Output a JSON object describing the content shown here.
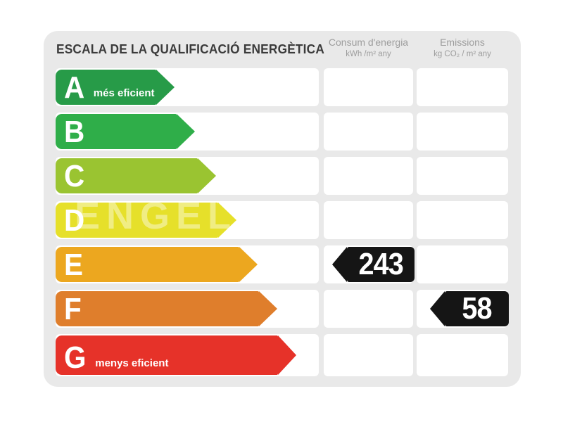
{
  "header": {
    "title": "ESCALA DE LA QUALIFICACIÓ ENERGÈTICA",
    "columns": [
      {
        "name": "Consum d'energia",
        "unit": "kWh /m² any"
      },
      {
        "name": "Emissions",
        "unit": "kg CO₂ / m² any"
      }
    ]
  },
  "scale": {
    "rows": [
      {
        "letter": "A",
        "label": "més eficient",
        "color": "#279b48"
      },
      {
        "letter": "B",
        "label": "",
        "color": "#2fae49"
      },
      {
        "letter": "C",
        "label": "",
        "color": "#9ac431"
      },
      {
        "letter": "D",
        "label": "",
        "color": "#e6e02a"
      },
      {
        "letter": "E",
        "label": "",
        "color": "#eca71f"
      },
      {
        "letter": "F",
        "label": "",
        "color": "#df7e2c"
      },
      {
        "letter": "G",
        "label": "menys eficient",
        "color": "#e63229"
      }
    ]
  },
  "markers": {
    "consum": {
      "value": "243",
      "row": "E"
    },
    "emissions": {
      "value": "58",
      "row": "F"
    }
  },
  "watermark": "ENGEL",
  "colors": {
    "card_bg": "#e9e9e9",
    "cell_bg": "#ffffff",
    "title": "#3b3b3b",
    "muted": "#9d9d9d",
    "marker": "#151515"
  },
  "chart_data": {
    "type": "bar",
    "title": "ESCALA DE LA QUALIFICACIÓ ENERGÈTICA",
    "categories": [
      "A",
      "B",
      "C",
      "D",
      "E",
      "F",
      "G"
    ],
    "category_annotations": {
      "A": "més eficient",
      "G": "menys eficient"
    },
    "bar_colors": [
      "#279b48",
      "#2fae49",
      "#9ac431",
      "#e6e02a",
      "#eca71f",
      "#df7e2c",
      "#e63229"
    ],
    "series": [
      {
        "name": "Consum d'energia (kWh/m² any)",
        "values": [
          null,
          null,
          null,
          null,
          243,
          null,
          null
        ]
      },
      {
        "name": "Emissions (kg CO₂/m² any)",
        "values": [
          null,
          null,
          null,
          null,
          null,
          58,
          null
        ]
      }
    ],
    "legend_position": "top",
    "grid": false
  }
}
